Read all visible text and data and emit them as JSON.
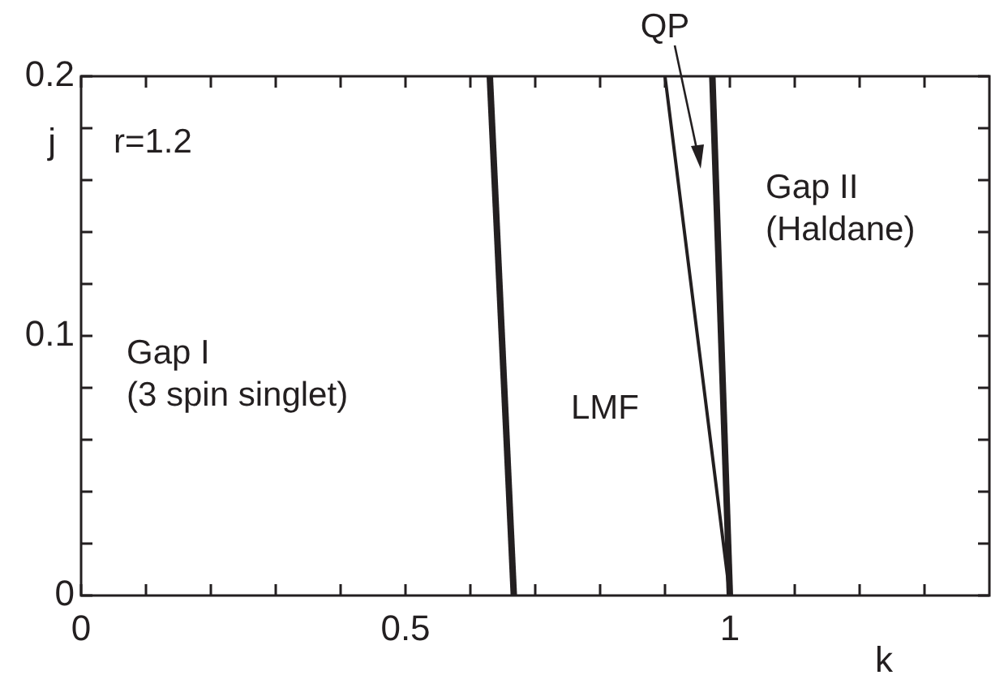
{
  "chart_data": {
    "type": "line",
    "xlabel": "k",
    "ylabel": "j",
    "xlim": [
      0,
      1.4
    ],
    "ylim": [
      0,
      0.2
    ],
    "xticks": [
      0,
      {
        "value": 0.1,
        "label": null
      },
      {
        "value": 0.2,
        "label": null
      },
      {
        "value": 0.3,
        "label": null
      },
      {
        "value": 0.4,
        "label": null
      },
      0.5,
      {
        "value": 0.6,
        "label": null
      },
      {
        "value": 0.7,
        "label": null
      },
      {
        "value": 0.8,
        "label": null
      },
      {
        "value": 0.9,
        "label": null
      },
      1,
      {
        "value": 1.1,
        "label": null
      },
      {
        "value": 1.2,
        "label": null
      },
      {
        "value": 1.3,
        "label": null
      }
    ],
    "yticks": [
      0,
      {
        "value": 0.02,
        "label": null
      },
      {
        "value": 0.04,
        "label": null
      },
      {
        "value": 0.06,
        "label": null
      },
      {
        "value": 0.08,
        "label": null
      },
      0.1,
      {
        "value": 0.12,
        "label": null
      },
      {
        "value": 0.14,
        "label": null
      },
      {
        "value": 0.16,
        "label": null
      },
      {
        "value": 0.18,
        "label": null
      },
      0.2
    ],
    "series": [
      {
        "color": "#231f20",
        "x": [
          0.667,
          0.63
        ],
        "values": [
          0,
          0.2
        ]
      },
      {
        "color": "#231f20",
        "x": [
          1.0,
          0.9
        ],
        "values": [
          0,
          0.2
        ]
      },
      {
        "color": "#231f20",
        "x": [
          1.0,
          0.973
        ],
        "values": [
          0,
          0.2
        ]
      }
    ],
    "marker": "none",
    "line_style": "solid",
    "grid": false,
    "legend": false,
    "annotations": [
      "r=1.2",
      "Gap I\n(3 spin singlet)",
      "LMF",
      "Gap II\n(Haldane)",
      "QP"
    ]
  }
}
